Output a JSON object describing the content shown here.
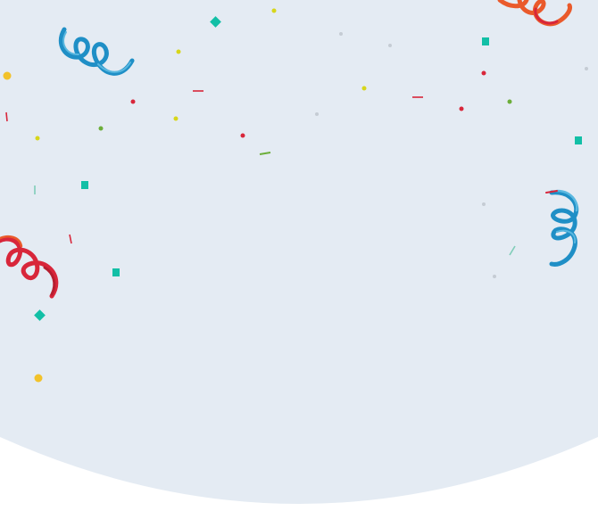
{
  "colors": {
    "page_background": "#ffffff",
    "panel_background": "#e4ebf3",
    "ribbon_red": "#d8263a",
    "ribbon_red_dark": "#b51e2f",
    "ribbon_orange": "#ea5a2b",
    "ribbon_blue": "#1f8fc6",
    "ribbon_blue_light": "#5ab8e0",
    "confetti_teal": "#12bfa6",
    "confetti_yellow": "#d7d61a",
    "confetti_gold": "#f2c22a",
    "confetti_green": "#6cae3a",
    "confetti_red": "#d8263a",
    "confetti_grey": "#c5ccd4"
  },
  "decorations": {
    "ribbons": [
      "red-ribbon",
      "blue-ribbon",
      "red-ribbon",
      "blue-ribbon"
    ],
    "confetti": [
      "teal-square",
      "yellow-dot",
      "gold-dot",
      "red-dash",
      "green-dash",
      "grey-dot"
    ]
  }
}
